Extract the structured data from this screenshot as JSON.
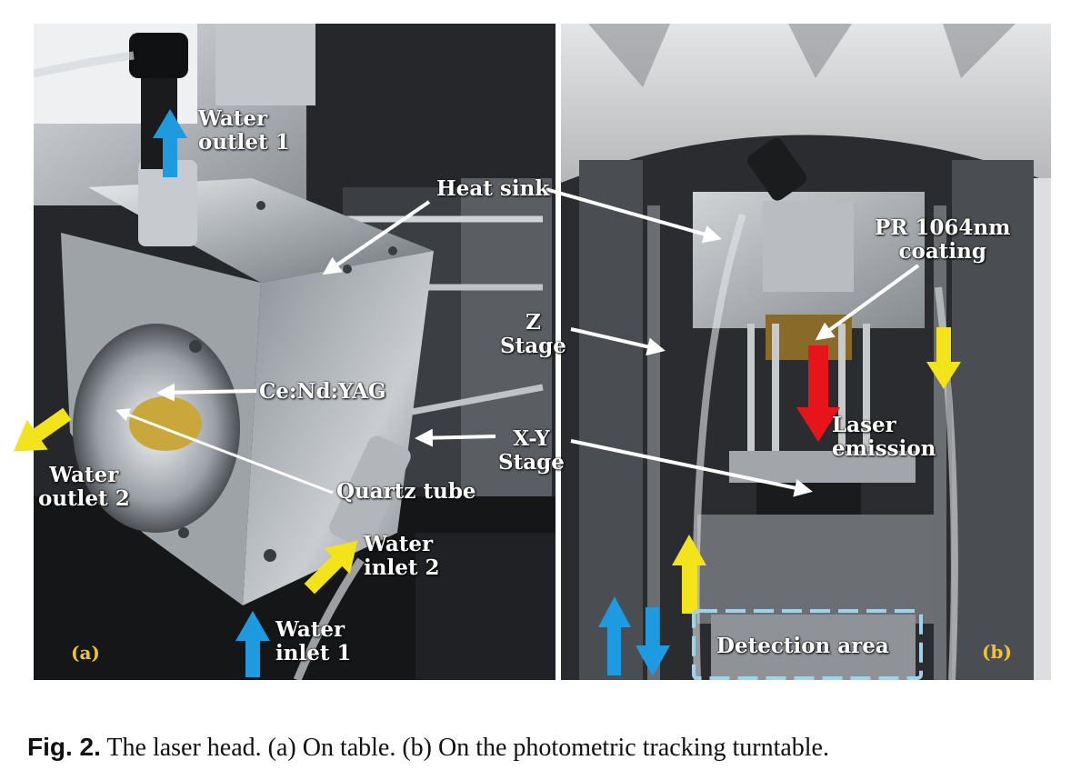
{
  "panel_a": {
    "tag": "(a)",
    "labels": {
      "water_outlet_1": [
        "Water",
        "outlet 1"
      ],
      "heat_sink": "Heat sink",
      "ce_nd_yag": "Ce:Nd:YAG",
      "water_outlet_2": [
        "Water",
        "outlet 2"
      ],
      "quartz_tube": "Quartz tube",
      "water_inlet_2": [
        "Water",
        "inlet 2"
      ],
      "water_inlet_1": [
        "Water",
        "inlet 1"
      ]
    }
  },
  "middle_labels": {
    "z_stage": [
      "Z",
      "Stage"
    ],
    "xy_stage": [
      "X-Y",
      "Stage"
    ]
  },
  "panel_b": {
    "tag": "(b)",
    "labels": {
      "pr_coating": [
        "PR 1064nm",
        "coating"
      ],
      "laser_emission": [
        "Laser",
        "emission"
      ],
      "detection_area": "Detection area"
    }
  },
  "caption": {
    "fig_label": "Fig. 2.",
    "text": "The laser head. (a) On table. (b) On the photometric tracking turntable."
  },
  "colors": {
    "flow_arrow_blue": "#1e9be0",
    "flow_arrow_yellow": "#f2e31b",
    "laser_arrow_red": "#e8141b",
    "pointer_white": "#ffffff",
    "detection_box": "#9fd3ec",
    "panel_tag": "#f1c232"
  }
}
